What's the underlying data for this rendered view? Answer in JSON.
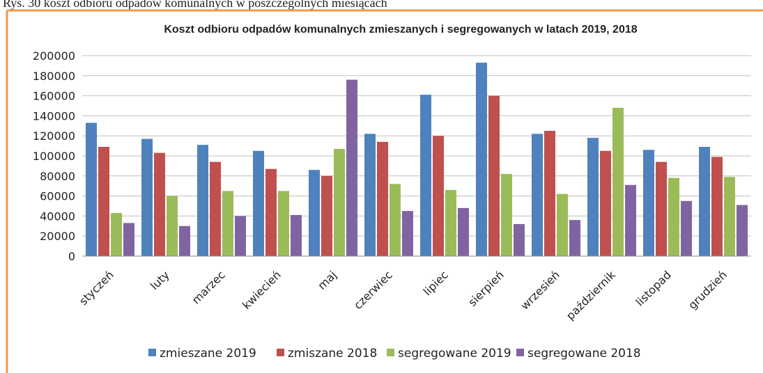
{
  "caption": "Rys. 30 koszt odbioru odpadów komunalnych w poszczególnych miesiącach",
  "chart_data": {
    "type": "bar",
    "title": "Koszt odbioru odpadów komunalnych zmieszanych i segregowanych w latach 2019, 2018",
    "categories": [
      "styczeń",
      "luty",
      "marzec",
      "kwiecień",
      "maj",
      "czerwiec",
      "lipiec",
      "sierpień",
      "wrzesień",
      "październik",
      "listopad",
      "grudzień"
    ],
    "series": [
      {
        "name": "zmieszane 2019",
        "color": "#4f81bd",
        "values": [
          133000,
          117000,
          111000,
          105000,
          86000,
          122000,
          161000,
          193000,
          122000,
          118000,
          106000,
          109000
        ]
      },
      {
        "name": "zmiszane 2018",
        "color": "#c0504d",
        "values": [
          109000,
          103000,
          94000,
          87000,
          80000,
          114000,
          120000,
          160000,
          125000,
          105000,
          94000,
          99000
        ]
      },
      {
        "name": "segregowane 2019",
        "color": "#9bbb59",
        "values": [
          43000,
          60000,
          65000,
          65000,
          107000,
          72000,
          66000,
          82000,
          62000,
          148000,
          78000,
          79000
        ]
      },
      {
        "name": "segregowane 2018",
        "color": "#8064a2",
        "values": [
          33000,
          30000,
          40000,
          41000,
          176000,
          45000,
          48000,
          32000,
          36000,
          71000,
          55000,
          51000
        ]
      }
    ],
    "ylim": [
      0,
      200000
    ],
    "yticks": [
      0,
      20000,
      40000,
      60000,
      80000,
      100000,
      120000,
      140000,
      160000,
      180000,
      200000
    ],
    "grid": true,
    "legend": "bottom"
  }
}
